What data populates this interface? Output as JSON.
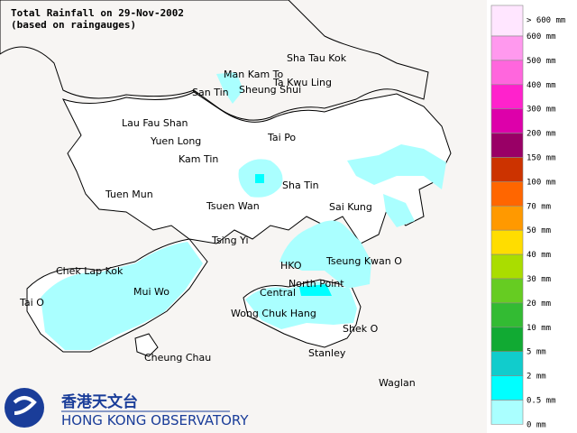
{
  "header": {
    "title": "Total Rainfall on 29-Nov-2002",
    "subtitle": "(based on raingauges)"
  },
  "places": [
    "Sha Tau Kok",
    "Man Kam To",
    "Ta Kwu Ling",
    "San Tin",
    "Sheung Shui",
    "Lau Fau Shan",
    "Yuen Long",
    "Tai Po",
    "Kam Tin",
    "Sha Tin",
    "Tuen Mun",
    "Tsuen Wan",
    "Sai Kung",
    "Tsing Yi",
    "Tseung Kwan O",
    "Chek Lap Kok",
    "HKO",
    "Mui Wo",
    "Central",
    "North Point",
    "Tai O",
    "Wong Chuk Hang",
    "Shek O",
    "Stanley",
    "Cheung Chau",
    "Waglan"
  ],
  "legend": {
    "labels": [
      "> 600 mm",
      "600 mm",
      "500 mm",
      "400 mm",
      "300 mm",
      "200 mm",
      "150 mm",
      "100 mm",
      "70 mm",
      "50 mm",
      "40 mm",
      "30 mm",
      "20 mm",
      "10 mm",
      "5 mm",
      "2 mm",
      "0.5 mm",
      "0 mm"
    ],
    "colors": [
      "#ffe6ff",
      "#ff99ee",
      "#ff66dd",
      "#ff22cc",
      "#dd00aa",
      "#990066",
      "#cc3300",
      "#ff6600",
      "#ff9900",
      "#ffdd00",
      "#aadd00",
      "#66cc22",
      "#33bb33",
      "#11aa33",
      "#11cccc",
      "#00ffff",
      "#aaffff"
    ]
  },
  "logo": {
    "chinese": "香港天文台",
    "english": "HONG KONG OBSERVATORY"
  }
}
